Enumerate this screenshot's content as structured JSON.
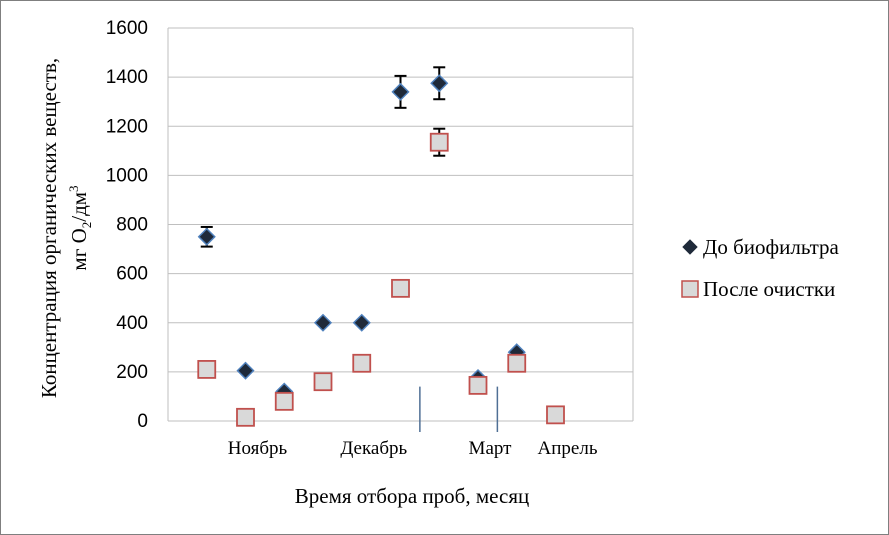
{
  "chart_data": {
    "type": "scatter",
    "xlabel": "Время отбора проб, месяц",
    "ylabel_line1": "Концентрация органических веществ,",
    "ylabel_line2_prefix": "мг O",
    "ylabel_line2_sub": "2",
    "ylabel_line2_mid": "/дм",
    "ylabel_line2_sup": "3",
    "ylim": [
      0,
      1600
    ],
    "yticks": [
      "0",
      "200",
      "400",
      "600",
      "800",
      "1000",
      "1200",
      "1400",
      "1600"
    ],
    "grid": "horizontal",
    "legend_position": "right",
    "x_range": [
      0,
      12
    ],
    "categories": [
      {
        "label": "Ноябрь",
        "x": 2
      },
      {
        "label": "Декабрь",
        "x": 5
      },
      {
        "label": "Март",
        "x": 8
      },
      {
        "label": "Апрель",
        "x": 10
      }
    ],
    "separators_x": [
      6.5,
      8.5
    ],
    "series": [
      {
        "name": "До биофильтра",
        "marker": "diamond",
        "color": "#1f2a3a",
        "edge": "#4f81bd",
        "points": [
          {
            "x": 1,
            "y": 750,
            "err": 40
          },
          {
            "x": 2,
            "y": 205
          },
          {
            "x": 3,
            "y": 120
          },
          {
            "x": 4,
            "y": 400
          },
          {
            "x": 5,
            "y": 400
          },
          {
            "x": 6,
            "y": 1340,
            "err": 65
          },
          {
            "x": 7,
            "y": 1375,
            "err": 65
          },
          {
            "x": 8,
            "y": 175
          },
          {
            "x": 9,
            "y": 280
          }
        ]
      },
      {
        "name": "После очистки",
        "marker": "square",
        "color": "#d9d9d9",
        "edge": "#c0504d",
        "points": [
          {
            "x": 1,
            "y": 210
          },
          {
            "x": 2,
            "y": 15
          },
          {
            "x": 3,
            "y": 80
          },
          {
            "x": 4,
            "y": 160
          },
          {
            "x": 5,
            "y": 235
          },
          {
            "x": 6,
            "y": 540
          },
          {
            "x": 7,
            "y": 1135,
            "err": 55
          },
          {
            "x": 8,
            "y": 145
          },
          {
            "x": 9,
            "y": 235
          },
          {
            "x": 10,
            "y": 25
          }
        ]
      }
    ]
  }
}
